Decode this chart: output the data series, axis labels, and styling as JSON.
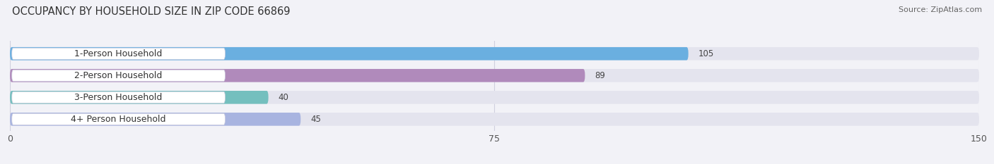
{
  "title": "OCCUPANCY BY HOUSEHOLD SIZE IN ZIP CODE 66869",
  "source": "Source: ZipAtlas.com",
  "categories": [
    "1-Person Household",
    "2-Person Household",
    "3-Person Household",
    "4+ Person Household"
  ],
  "values": [
    105,
    89,
    40,
    45
  ],
  "bar_colors": [
    "#6aafe0",
    "#b08abb",
    "#74bfbe",
    "#a8b4e0"
  ],
  "xlim": [
    0,
    150
  ],
  "xticks": [
    0,
    75,
    150
  ],
  "background_color": "#f2f2f7",
  "bar_bg_color": "#e4e4ee",
  "title_fontsize": 10.5,
  "source_fontsize": 8,
  "label_fontsize": 9,
  "value_fontsize": 8.5
}
